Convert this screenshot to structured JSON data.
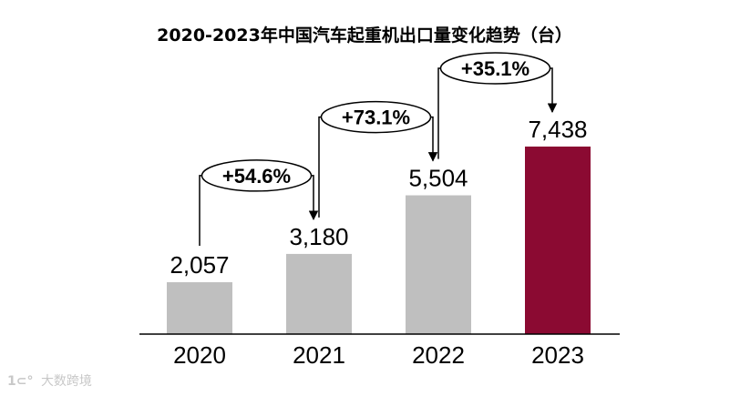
{
  "chart_data": {
    "type": "bar",
    "title": "2020-2023年中国汽车起重机出口量变化趋势（台）",
    "categories": [
      "2020",
      "2021",
      "2022",
      "2023"
    ],
    "values": [
      2057,
      3180,
      5504,
      7438
    ],
    "value_labels": [
      "2,057",
      "3,180",
      "5,504",
      "7,438"
    ],
    "growth_labels": [
      "+54.6%",
      "+73.1%",
      "+35.1%"
    ],
    "ylim": [
      0,
      9500
    ],
    "grid": false,
    "legend": "none"
  },
  "colors": {
    "bar_default": "#bfbfbf",
    "bar_highlight": "#8b0a32"
  },
  "footer": {
    "logo": "1⊂°",
    "text": "大数跨境"
  }
}
